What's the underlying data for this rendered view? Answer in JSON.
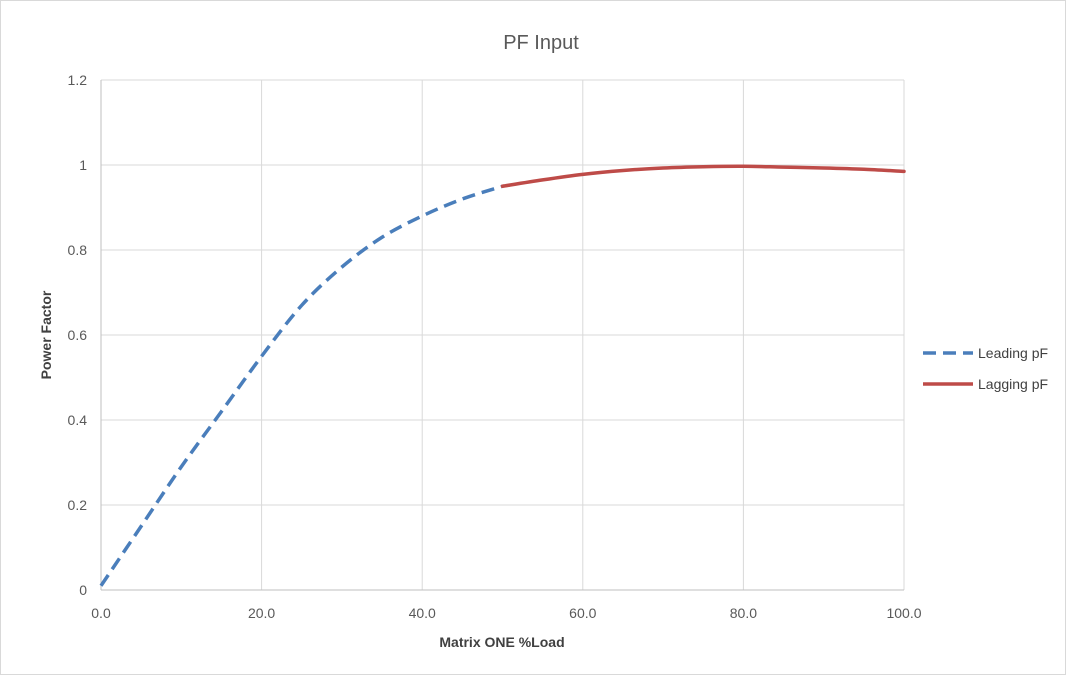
{
  "chart_data": {
    "type": "line",
    "title": "PF Input",
    "xlabel": "Matrix ONE %Load",
    "ylabel": "Power Factor",
    "xlim": [
      0,
      100
    ],
    "ylim": [
      0,
      1.2
    ],
    "x_ticks": [
      "0.0",
      "20.0",
      "40.0",
      "60.0",
      "80.0",
      "100.0"
    ],
    "y_ticks": [
      "0",
      "0.2",
      "0.4",
      "0.6",
      "0.8",
      "1",
      "1.2"
    ],
    "grid": true,
    "legend_position": "right",
    "series": [
      {
        "name": "Leading pF",
        "color": "#4a7ebb",
        "style": "dashed",
        "x": [
          0,
          5,
          10,
          15,
          20,
          25,
          30,
          35,
          40,
          45,
          50
        ],
        "y": [
          0.01,
          0.15,
          0.29,
          0.42,
          0.55,
          0.67,
          0.76,
          0.83,
          0.88,
          0.92,
          0.95
        ]
      },
      {
        "name": "Lagging pF",
        "color": "#be4b48",
        "style": "solid",
        "x": [
          50,
          55,
          60,
          65,
          70,
          75,
          80,
          85,
          90,
          95,
          100
        ],
        "y": [
          0.95,
          0.965,
          0.978,
          0.987,
          0.993,
          0.996,
          0.997,
          0.995,
          0.993,
          0.99,
          0.985
        ]
      }
    ]
  }
}
